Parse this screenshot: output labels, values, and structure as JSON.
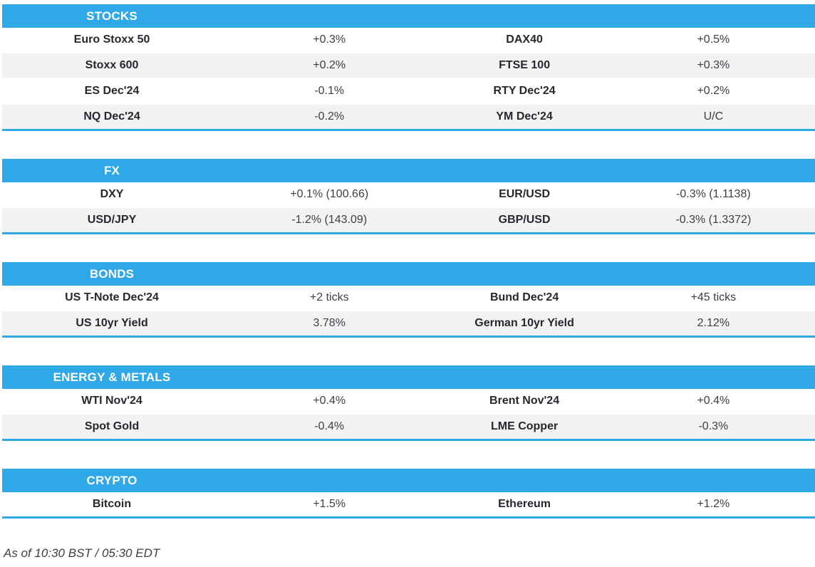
{
  "accent_color": "#2FA8E8",
  "row_alt_color": "#F2F2F2",
  "sections": [
    {
      "title": "STOCKS",
      "rows": [
        [
          "Euro Stoxx 50",
          "+0.3%",
          "DAX40",
          "+0.5%"
        ],
        [
          "Stoxx 600",
          "+0.2%",
          "FTSE 100",
          "+0.3%"
        ],
        [
          "ES Dec'24",
          "-0.1%",
          "RTY Dec'24",
          "+0.2%"
        ],
        [
          "NQ Dec'24",
          "-0.2%",
          "YM Dec'24",
          "U/C"
        ]
      ]
    },
    {
      "title": "FX",
      "rows": [
        [
          "DXY",
          "+0.1% (100.66)",
          "EUR/USD",
          "-0.3% (1.1138)"
        ],
        [
          "USD/JPY",
          "-1.2% (143.09)",
          "GBP/USD",
          "-0.3% (1.3372)"
        ]
      ]
    },
    {
      "title": "BONDS",
      "rows": [
        [
          "US T-Note Dec'24",
          "+2 ticks",
          "Bund Dec'24",
          "+45 ticks"
        ],
        [
          "US 10yr Yield",
          "3.78%",
          "German 10yr Yield",
          "2.12%"
        ]
      ]
    },
    {
      "title": "ENERGY & METALS",
      "rows": [
        [
          "WTI Nov'24",
          "+0.4%",
          "Brent Nov'24",
          "+0.4%"
        ],
        [
          "Spot Gold",
          "-0.4%",
          "LME Copper",
          "-0.3%"
        ]
      ]
    },
    {
      "title": "CRYPTO",
      "rows": [
        [
          "Bitcoin",
          "+1.5%",
          "Ethereum",
          "+1.2%"
        ]
      ]
    }
  ],
  "footer": {
    "as_of": "As of 10:30 BST / 05:30 EDT"
  }
}
